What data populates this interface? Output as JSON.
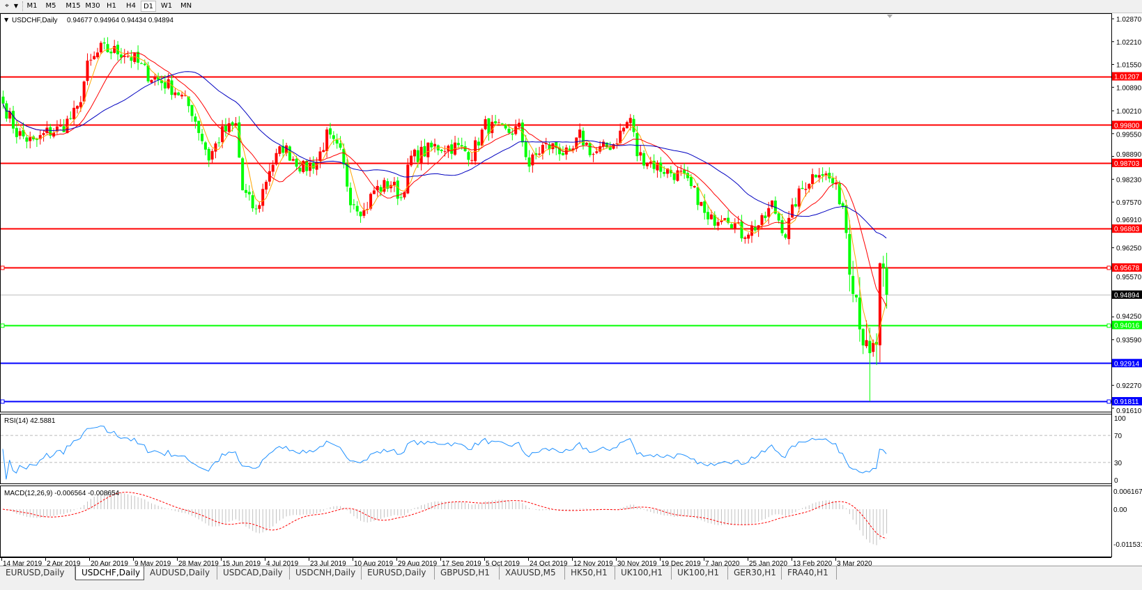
{
  "toolbar": {
    "timeframes": [
      "M1",
      "M5",
      "M15",
      "M30",
      "H1",
      "H4",
      "D1",
      "W1",
      "MN"
    ],
    "active_timeframe": "D1"
  },
  "chart": {
    "symbol_label": "USDCHF,Daily",
    "ohlc_label": "0.94677 0.94964 0.94434 0.94894",
    "bull_color": "#ff0000",
    "bear_color": "#00ff00",
    "price_axis_ticks": [
      "1.02870",
      "1.02210",
      "1.01550",
      "1.00890",
      "1.00210",
      "0.99550",
      "0.98890",
      "0.98230",
      "0.97570",
      "0.96910",
      "0.96250",
      "0.95570",
      "0.94250",
      "0.93590",
      "0.92270",
      "0.91610"
    ],
    "horizontal_lines": [
      {
        "price": "1.01207",
        "color": "#ff0000"
      },
      {
        "price": "0.99800",
        "color": "#ff0000"
      },
      {
        "price": "0.98703",
        "color": "#ff0000"
      },
      {
        "price": "0.96803",
        "color": "#ff0000"
      },
      {
        "price": "0.95678",
        "color": "#ff0000",
        "selected": true
      },
      {
        "price": "0.94894",
        "color": "#c0c0c0",
        "bid": true
      },
      {
        "price": "0.94016",
        "color": "#00ff00",
        "selected": true
      },
      {
        "price": "0.92914",
        "color": "#0000ff"
      },
      {
        "price": "0.91811",
        "color": "#0000ff",
        "selected": true
      }
    ],
    "date_labels": [
      "14 Mar 2019",
      "2 Apr 2019",
      "20 Apr 2019",
      "9 May 2019",
      "28 May 2019",
      "15 Jun 2019",
      "4 Jul 2019",
      "23 Jul 2019",
      "10 Aug 2019",
      "29 Aug 2019",
      "17 Sep 2019",
      "5 Oct 2019",
      "24 Oct 2019",
      "12 Nov 2019",
      "30 Nov 2019",
      "19 Dec 2019",
      "7 Jan 2020",
      "25 Jan 2020",
      "13 Feb 2020",
      "3 Mar 2020"
    ],
    "ma_colors": [
      "#ffa500",
      "#ff0000",
      "#0000c0"
    ]
  },
  "chart_data": {
    "type": "candlestick",
    "approx_closes": [
      {
        "bar": 0,
        "close": 1.0042
      },
      {
        "bar": 4,
        "close": 0.9958
      },
      {
        "bar": 9,
        "close": 0.9927
      },
      {
        "bar": 13,
        "close": 0.9958
      },
      {
        "bar": 17,
        "close": 0.9969
      },
      {
        "bar": 22,
        "close": 1.0021
      },
      {
        "bar": 25,
        "close": 1.0147
      },
      {
        "bar": 29,
        "close": 1.0199
      },
      {
        "bar": 36,
        "close": 1.0189
      },
      {
        "bar": 39,
        "close": 1.0168
      },
      {
        "bar": 43,
        "close": 1.0126
      },
      {
        "bar": 49,
        "close": 1.0094
      },
      {
        "bar": 52,
        "close": 1.0073
      },
      {
        "bar": 56,
        "close": 1.0021
      },
      {
        "bar": 61,
        "close": 0.9885
      },
      {
        "bar": 65,
        "close": 0.9958
      },
      {
        "bar": 69,
        "close": 0.9979
      },
      {
        "bar": 71,
        "close": 0.9791
      },
      {
        "bar": 75,
        "close": 0.9728
      },
      {
        "bar": 79,
        "close": 0.9854
      },
      {
        "bar": 83,
        "close": 0.9917
      },
      {
        "bar": 89,
        "close": 0.9854
      },
      {
        "bar": 93,
        "close": 0.9875
      },
      {
        "bar": 96,
        "close": 0.9948
      },
      {
        "bar": 100,
        "close": 0.9896
      },
      {
        "bar": 103,
        "close": 0.977
      },
      {
        "bar": 107,
        "close": 0.9728
      },
      {
        "bar": 110,
        "close": 0.9791
      },
      {
        "bar": 115,
        "close": 0.9812
      },
      {
        "bar": 118,
        "close": 0.977
      },
      {
        "bar": 121,
        "close": 0.9885
      },
      {
        "bar": 128,
        "close": 0.9917
      },
      {
        "bar": 134,
        "close": 0.9917
      },
      {
        "bar": 139,
        "close": 0.9896
      },
      {
        "bar": 143,
        "close": 0.9979
      },
      {
        "bar": 149,
        "close": 0.9958
      },
      {
        "bar": 153,
        "close": 0.9969
      },
      {
        "bar": 156,
        "close": 0.9864
      },
      {
        "bar": 160,
        "close": 0.9917
      },
      {
        "bar": 164,
        "close": 0.9917
      },
      {
        "bar": 168,
        "close": 0.9885
      },
      {
        "bar": 171,
        "close": 0.9948
      },
      {
        "bar": 175,
        "close": 0.9896
      },
      {
        "bar": 181,
        "close": 0.9927
      },
      {
        "bar": 186,
        "close": 1.0
      },
      {
        "bar": 188,
        "close": 0.9896
      },
      {
        "bar": 195,
        "close": 0.9854
      },
      {
        "bar": 201,
        "close": 0.9833
      },
      {
        "bar": 206,
        "close": 0.977
      },
      {
        "bar": 209,
        "close": 0.9697
      },
      {
        "bar": 214,
        "close": 0.9728
      },
      {
        "bar": 219,
        "close": 0.9666
      },
      {
        "bar": 225,
        "close": 0.9697
      },
      {
        "bar": 228,
        "close": 0.9749
      },
      {
        "bar": 232,
        "close": 0.9666
      },
      {
        "bar": 235,
        "close": 0.976
      },
      {
        "bar": 238,
        "close": 0.9812
      },
      {
        "bar": 242,
        "close": 0.9854
      },
      {
        "bar": 246,
        "close": 0.9812
      },
      {
        "bar": 249,
        "close": 0.9749
      },
      {
        "bar": 251,
        "close": 0.9603
      },
      {
        "bar": 254,
        "close": 0.9435
      },
      {
        "bar": 256,
        "close": 0.931
      },
      {
        "bar": 257,
        "close": 0.9289
      },
      {
        "bar": 259,
        "close": 0.9352
      },
      {
        "bar": 260,
        "close": 0.954
      },
      {
        "bar": 262,
        "close": 0.94894
      }
    ],
    "ylim": [
      0.9161,
      1.0287
    ]
  },
  "rsi": {
    "label": "RSI(14) 42.5881",
    "ticks": [
      "100",
      "70",
      "30",
      "0"
    ],
    "color": "#1e90ff"
  },
  "macd": {
    "label": "MACD(12,26,9) -0.006564 -0.008654",
    "ticks": [
      "0.006167",
      "0.00",
      "-0.011531"
    ],
    "signal_color": "#ff0000",
    "histogram_color": "#c0c0c0"
  },
  "tabs": [
    {
      "label": "EURUSD,Daily"
    },
    {
      "label": "USDCHF,Daily",
      "active": true
    },
    {
      "label": "AUDUSD,Daily"
    },
    {
      "label": "USDCAD,Daily"
    },
    {
      "label": "USDCNH,Daily"
    },
    {
      "label": "EURUSD,Daily"
    },
    {
      "label": "GBPUSD,H1"
    },
    {
      "label": "XAUUSD,M5"
    },
    {
      "label": "HK50,H1"
    },
    {
      "label": "UK100,H1"
    },
    {
      "label": "UK100,H1"
    },
    {
      "label": "GER30,H1"
    },
    {
      "label": "FRA40,H1"
    }
  ]
}
